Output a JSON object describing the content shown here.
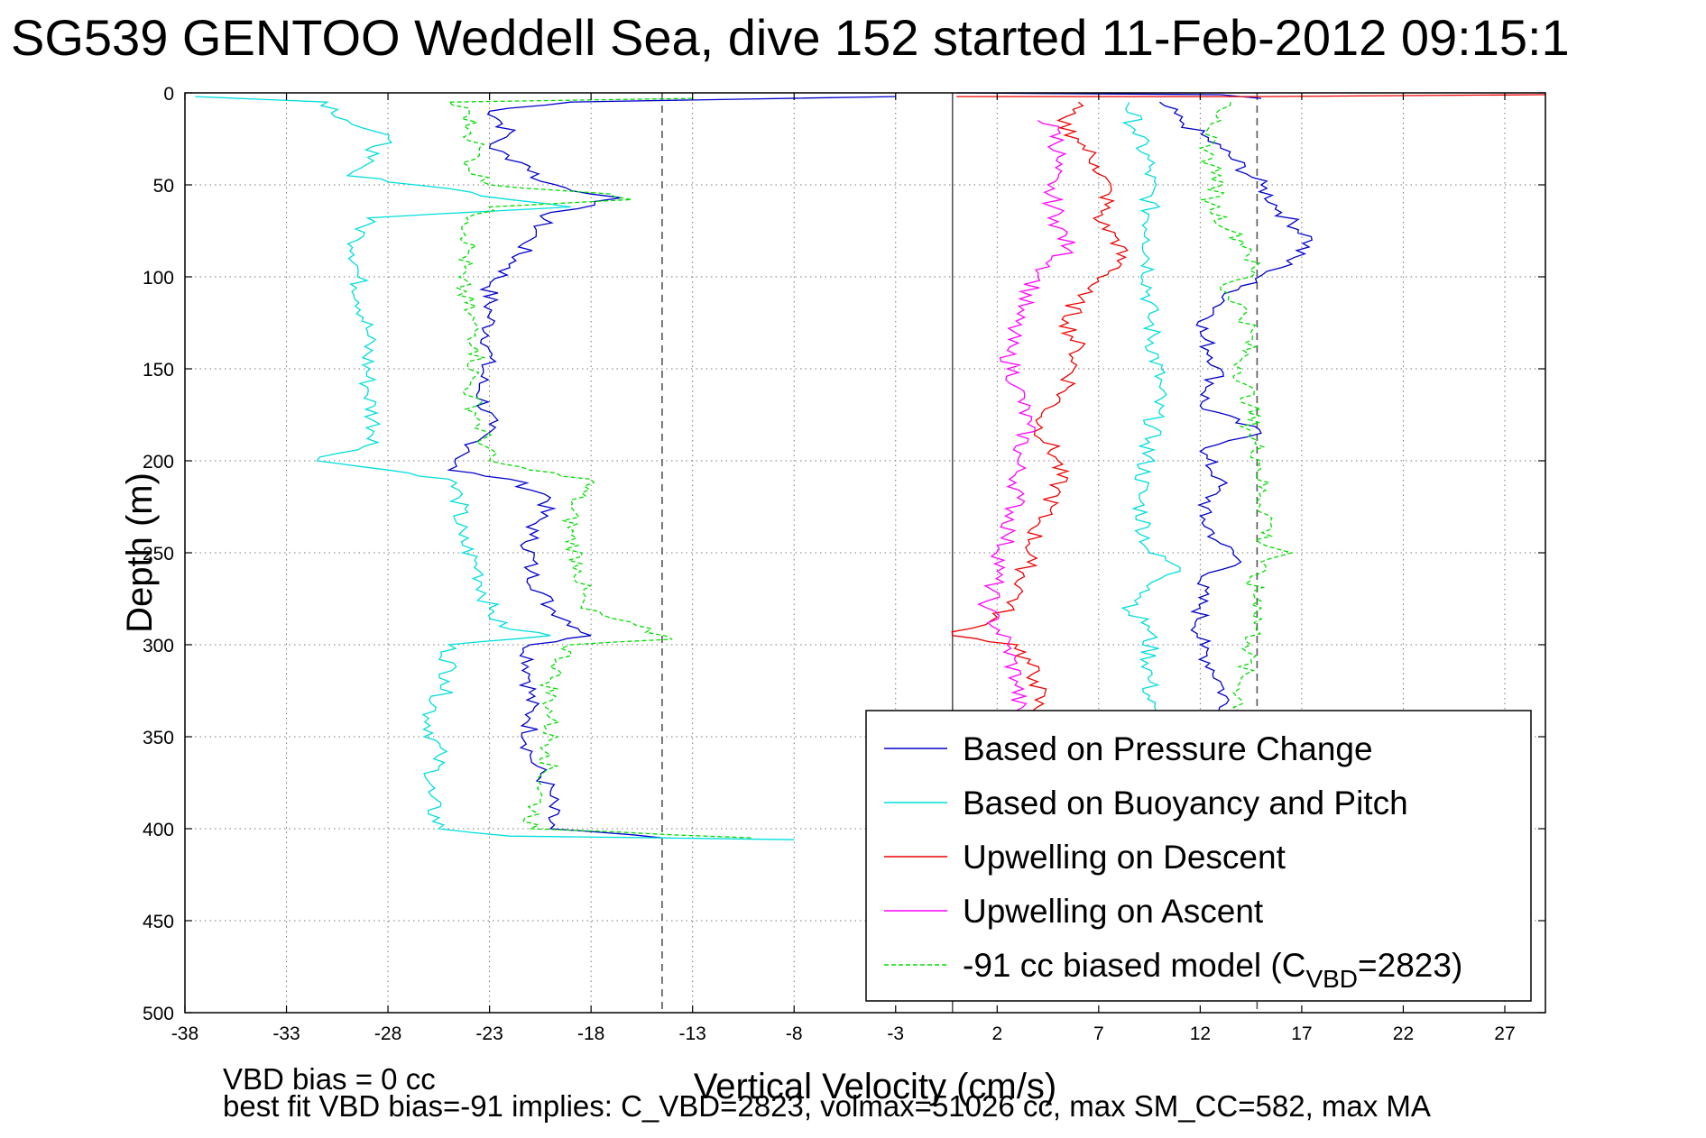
{
  "chart_data": {
    "type": "line",
    "title": "SG539 GENTOO Weddell Sea, dive 152 started 11-Feb-2012 09:15:1",
    "xlabel": "Vertical Velocity (cm/s)",
    "ylabel": "Depth (m)",
    "xlim": [
      -38,
      29
    ],
    "ylim": [
      0,
      500
    ],
    "y_reversed": true,
    "grid": true,
    "x_ticks": [
      -38,
      -33,
      -28,
      -23,
      -18,
      -13,
      -8,
      -3,
      2,
      7,
      12,
      17,
      22,
      27
    ],
    "y_ticks": [
      0,
      50,
      100,
      150,
      200,
      250,
      300,
      350,
      400,
      450,
      500
    ],
    "reference_lines": [
      {
        "x": -14.5,
        "style": "dashed",
        "color": "#555555"
      },
      {
        "x": -0.2,
        "style": "solid",
        "color": "#555555"
      },
      {
        "x": 14.8,
        "style": "dashed",
        "color": "#555555"
      }
    ],
    "legend_position": "bottom-right",
    "series": [
      {
        "name": "Based on Pressure Change",
        "color": "#0000cc",
        "style": "solid",
        "points": [
          [
            [
              0,
              0
            ],
            [
              13,
              1
            ],
            [
              15,
              3
            ]
          ],
          [
            [
              -3,
              2
            ],
            [
              -19,
              5
            ],
            [
              -23,
              10
            ],
            [
              -22.5,
              15
            ],
            [
              -22,
              22
            ],
            [
              -23,
              30
            ],
            [
              -21,
              40
            ],
            [
              -20.5,
              48
            ],
            [
              -18,
              55
            ],
            [
              -16.5,
              57
            ],
            [
              -20,
              65
            ],
            [
              -21,
              80
            ],
            [
              -22,
              95
            ],
            [
              -23,
              105
            ],
            [
              -23,
              120
            ],
            [
              -23,
              140
            ],
            [
              -23.5,
              160
            ],
            [
              -23,
              180
            ],
            [
              -24,
              195
            ],
            [
              -25,
              205
            ],
            [
              -22,
              210
            ],
            [
              -20,
              220
            ],
            [
              -21,
              240
            ],
            [
              -21,
              260
            ],
            [
              -20,
              280
            ],
            [
              -18,
              295
            ],
            [
              -21,
              300
            ],
            [
              -21,
              320
            ],
            [
              -21,
              340
            ],
            [
              -21,
              360
            ],
            [
              -20,
              380
            ],
            [
              -20,
              400
            ],
            [
              -14.5,
              405
            ]
          ],
          [
            [
              10,
              5
            ],
            [
              11,
              15
            ],
            [
              13,
              30
            ],
            [
              15,
              50
            ],
            [
              16,
              65
            ],
            [
              17.5,
              80
            ],
            [
              16,
              95
            ],
            [
              14,
              105
            ],
            [
              13,
              115
            ],
            [
              12,
              130
            ],
            [
              13,
              150
            ],
            [
              12,
              170
            ],
            [
              15,
              185
            ],
            [
              12,
              195
            ],
            [
              13,
              210
            ],
            [
              12,
              230
            ],
            [
              13,
              245
            ],
            [
              14,
              255
            ],
            [
              12,
              265
            ],
            [
              12,
              280
            ],
            [
              12,
              300
            ],
            [
              13,
              320
            ],
            [
              13.5,
              340
            ]
          ]
        ]
      },
      {
        "name": "Based on Buoyancy and Pitch",
        "color": "#00dddd",
        "style": "solid",
        "points": [
          [
            [
              -37.5,
              2
            ],
            [
              -31,
              5
            ],
            [
              -30,
              15
            ],
            [
              -28,
              25
            ],
            [
              -29,
              35
            ],
            [
              -30,
              45
            ],
            [
              -25,
              52
            ],
            [
              -22,
              58
            ],
            [
              -19,
              62
            ],
            [
              -29,
              68
            ],
            [
              -29.5,
              80
            ],
            [
              -29.5,
              100
            ],
            [
              -29,
              130
            ],
            [
              -29,
              160
            ],
            [
              -28.5,
              190
            ],
            [
              -31.5,
              200
            ],
            [
              -28,
              205
            ],
            [
              -25,
              210
            ],
            [
              -24.5,
              220
            ],
            [
              -24.5,
              240
            ],
            [
              -23.5,
              260
            ],
            [
              -23,
              280
            ],
            [
              -22.5,
              290
            ],
            [
              -20,
              295
            ],
            [
              -25,
              300
            ],
            [
              -25,
              320
            ],
            [
              -26,
              340
            ],
            [
              -25.5,
              360
            ],
            [
              -26,
              380
            ],
            [
              -25.5,
              400
            ],
            [
              -22,
              404
            ],
            [
              -14.5,
              405
            ],
            [
              -8,
              406
            ]
          ],
          [
            [
              8.5,
              5
            ],
            [
              8.8,
              20
            ],
            [
              9.5,
              40
            ],
            [
              9.5,
              80
            ],
            [
              9.5,
              120
            ],
            [
              10,
              160
            ],
            [
              9.5,
              190
            ],
            [
              9,
              220
            ],
            [
              9.5,
              250
            ],
            [
              11,
              258
            ],
            [
              9.5,
              270
            ],
            [
              8.5,
              282
            ],
            [
              9.5,
              290
            ],
            [
              9.5,
              320
            ],
            [
              9.5,
              345
            ]
          ]
        ]
      },
      {
        "name": "Upwelling on Descent",
        "color": "#ee0000",
        "style": "solid",
        "points": [
          [
            [
              0,
              2
            ],
            [
              15,
              2
            ],
            [
              29,
              1
            ]
          ],
          [
            [
              6,
              5
            ],
            [
              5,
              15
            ],
            [
              6,
              25
            ],
            [
              7,
              40
            ],
            [
              7.5,
              55
            ],
            [
              7,
              70
            ],
            [
              8,
              80
            ],
            [
              8,
              95
            ],
            [
              6,
              110
            ],
            [
              5.5,
              125
            ],
            [
              6,
              140
            ],
            [
              5.5,
              160
            ],
            [
              4,
              180
            ],
            [
              5,
              200
            ],
            [
              5,
              215
            ],
            [
              4,
              235
            ],
            [
              3.5,
              255
            ],
            [
              3,
              275
            ],
            [
              2,
              285
            ],
            [
              -0.2,
              295
            ],
            [
              3,
              300
            ],
            [
              4,
              320
            ],
            [
              4,
              340
            ]
          ]
        ]
      },
      {
        "name": "Upwelling on Ascent",
        "color": "#ff00ff",
        "style": "solid",
        "points": [
          [
            [
              4,
              15
            ],
            [
              5,
              20
            ],
            [
              5,
              35
            ],
            [
              4.5,
              50
            ],
            [
              5,
              70
            ],
            [
              5.5,
              85
            ],
            [
              4,
              100
            ],
            [
              3,
              120
            ],
            [
              2.5,
              140
            ],
            [
              3,
              160
            ],
            [
              3.5,
              180
            ],
            [
              3,
              200
            ],
            [
              3,
              220
            ],
            [
              2.5,
              240
            ],
            [
              2,
              260
            ],
            [
              1.5,
              280
            ],
            [
              2.5,
              300
            ],
            [
              3,
              320
            ],
            [
              3,
              340
            ]
          ]
        ]
      },
      {
        "name": "-91 cc biased model (C_VBD=2823)",
        "color": "#00dd00",
        "style": "dashed",
        "points": [
          [
            [
              -13,
              3
            ],
            [
              -25,
              5
            ],
            [
              -24,
              10
            ],
            [
              -24,
              20
            ],
            [
              -23.5,
              30
            ],
            [
              -24,
              40
            ],
            [
              -23,
              50
            ],
            [
              -17,
              55
            ],
            [
              -16,
              58
            ],
            [
              -23,
              62
            ],
            [
              -24,
              70
            ],
            [
              -24,
              85
            ],
            [
              -24.5,
              100
            ],
            [
              -24,
              120
            ],
            [
              -23.5,
              140
            ],
            [
              -24,
              160
            ],
            [
              -23.5,
              180
            ],
            [
              -23,
              200
            ],
            [
              -21,
              205
            ],
            [
              -18,
              210
            ],
            [
              -19,
              225
            ],
            [
              -19,
              240
            ],
            [
              -18.5,
              260
            ],
            [
              -18.5,
              280
            ],
            [
              -14,
              297
            ],
            [
              -19,
              300
            ],
            [
              -20,
              320
            ],
            [
              -20,
              340
            ],
            [
              -20,
              360
            ],
            [
              -20.5,
              380
            ],
            [
              -21,
              400
            ],
            [
              -10,
              405
            ]
          ],
          [
            [
              13.5,
              5
            ],
            [
              13,
              15
            ],
            [
              12,
              30
            ],
            [
              13,
              45
            ],
            [
              12.5,
              60
            ],
            [
              13.5,
              75
            ],
            [
              14.5,
              85
            ],
            [
              14.5,
              100
            ],
            [
              13,
              105
            ],
            [
              14,
              115
            ],
            [
              14.5,
              130
            ],
            [
              14,
              150
            ],
            [
              14.5,
              170
            ],
            [
              14.5,
              185
            ],
            [
              15,
              200
            ],
            [
              15,
              220
            ],
            [
              15.5,
              235
            ],
            [
              15,
              245
            ],
            [
              16.5,
              250
            ],
            [
              15,
              255
            ],
            [
              14.5,
              265
            ],
            [
              15,
              280
            ],
            [
              14.5,
              300
            ],
            [
              14,
              320
            ],
            [
              14,
              340
            ]
          ]
        ]
      }
    ]
  },
  "legend": {
    "items": [
      {
        "text": "Based on Pressure Change",
        "color": "#0000cc"
      },
      {
        "text": "Based on Buoyancy and Pitch",
        "color": "#00dddd"
      },
      {
        "text": "Upwelling on Descent",
        "color": "#ee0000"
      },
      {
        "text": "Upwelling on Ascent",
        "color": "#ff00ff"
      },
      {
        "text_main": "-91 cc biased model (C",
        "text_sub": "VBD",
        "text_tail": "=2823)",
        "color": "#00dd00"
      }
    ]
  },
  "notes": {
    "vbd_bias": "VBD bias = 0 cc",
    "best_fit": "best fit VBD bias=-91 implies: C_VBD=2823, volmax=51026 cc, max SM_CC=582, max MA"
  }
}
